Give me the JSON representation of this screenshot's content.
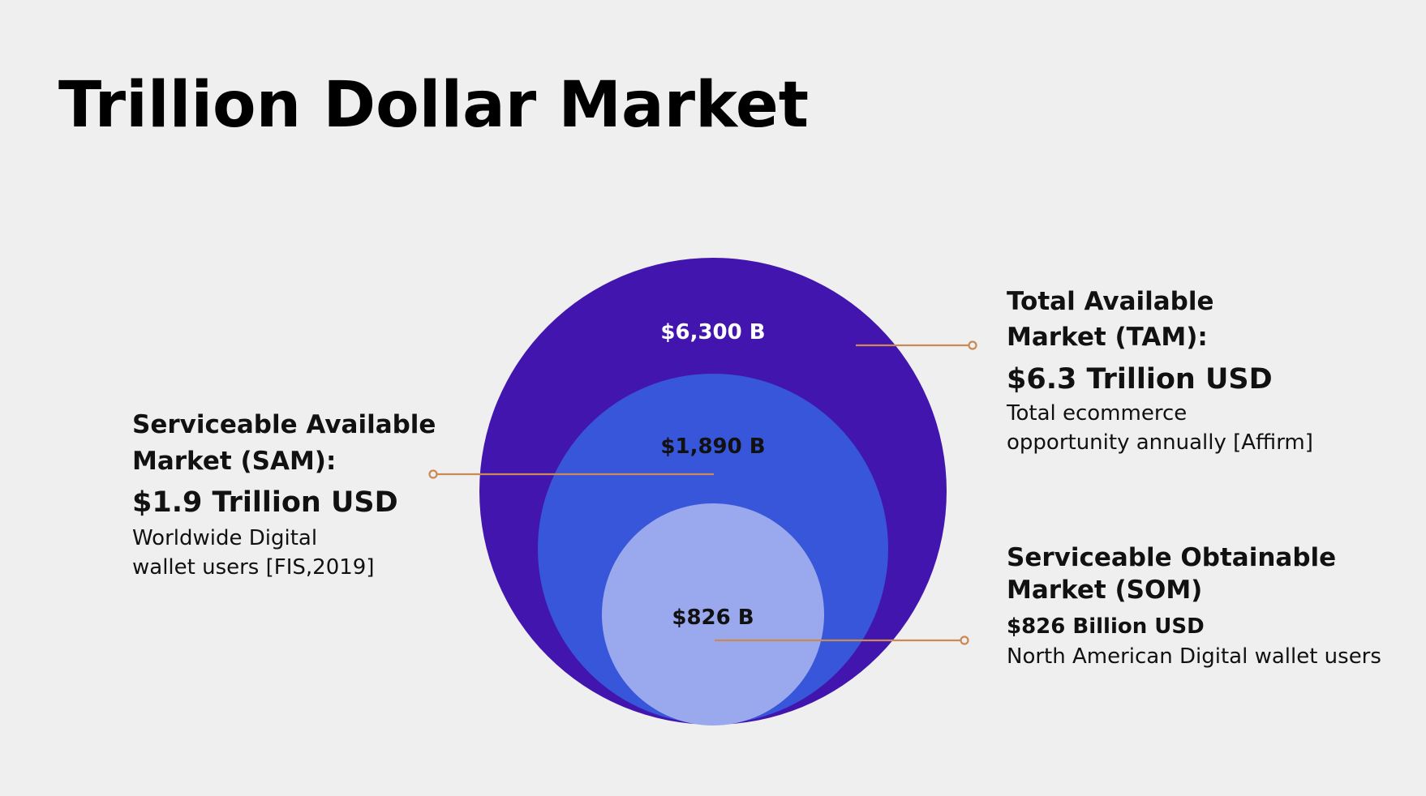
{
  "header": {
    "title": "Trillion Dollar Market"
  },
  "circles": [
    {
      "label": "$6,300 B"
    },
    {
      "label": "$1,890 B"
    },
    {
      "label": "$826 B"
    }
  ],
  "callouts": {
    "tam": {
      "heading": [
        "Total Available",
        "Market (TAM):"
      ],
      "amount": "$6.3 Trillion USD",
      "description": [
        "Total ecommerce",
        "opportunity annually [Affirm]"
      ]
    },
    "sam": {
      "heading": [
        "Serviceable Available",
        "Market (SAM):"
      ],
      "amount": "$1.9 Trillion USD",
      "description": [
        "Worldwide Digital",
        "wallet users [FIS,2019]"
      ]
    },
    "som": {
      "heading": [
        "Serviceable Obtainable",
        "Market (SOM)"
      ],
      "amount": "$826 Billion USD",
      "description": [
        "North American Digital wallet users"
      ]
    }
  }
}
